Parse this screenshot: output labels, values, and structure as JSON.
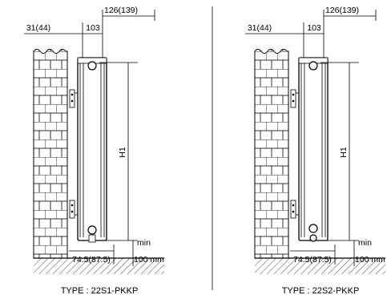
{
  "panels": [
    {
      "dim_overall": "126(139)",
      "dim_wall_gap": "31(44)",
      "dim_depth": "103",
      "dim_height": "H1",
      "dim_min": "min",
      "dim_bottom_offset": "74.5(87.5)",
      "dim_floor": "100 mm",
      "type_label": "TYPE : 22S1-PKKP"
    },
    {
      "dim_overall": "126(139)",
      "dim_wall_gap": "31(44)",
      "dim_depth": "103",
      "dim_height": "H1",
      "dim_min": "min",
      "dim_bottom_offset": "74.5(87.5)",
      "dim_floor": "100 mm",
      "type_label": "TYPE : 22S2-PKKP"
    }
  ],
  "colors": {
    "line": "#000000",
    "background": "#ffffff"
  }
}
